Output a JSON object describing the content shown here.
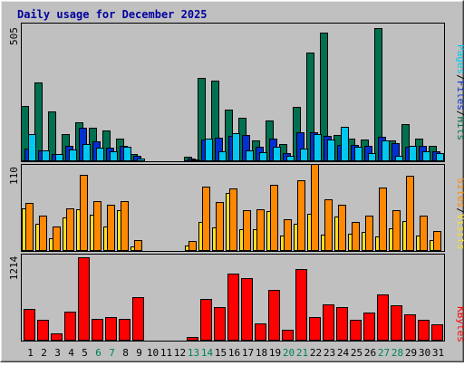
{
  "chart_data": [
    {
      "type": "bar",
      "title": "Daily usage for December 2025",
      "ymax_label": "505",
      "legend": [
        "Pages",
        "Files",
        "Hits"
      ],
      "ylim": [
        0,
        505
      ],
      "categories": [
        "1",
        "2",
        "3",
        "4",
        "5",
        "6",
        "7",
        "8",
        "9",
        "10",
        "11",
        "12",
        "13",
        "14",
        "15",
        "16",
        "17",
        "18",
        "19",
        "20",
        "21",
        "22",
        "23",
        "24",
        "25",
        "26",
        "27",
        "28",
        "29",
        "30",
        "31"
      ],
      "series": [
        {
          "name": "Hits",
          "values": [
            203,
            290,
            183,
            97,
            143,
            120,
            110,
            80,
            24,
            0,
            0,
            0,
            13,
            306,
            296,
            190,
            157,
            74,
            148,
            60,
            200,
            400,
            476,
            93,
            80,
            76,
            490,
            73,
            136,
            80,
            53
          ]
        },
        {
          "name": "Files",
          "values": [
            44,
            37,
            23,
            54,
            121,
            70,
            47,
            53,
            17,
            0,
            0,
            0,
            7,
            76,
            84,
            91,
            93,
            50,
            80,
            27,
            103,
            103,
            90,
            57,
            57,
            53,
            86,
            63,
            50,
            54,
            33
          ]
        },
        {
          "name": "Pages",
          "values": [
            97,
            37,
            23,
            40,
            60,
            47,
            33,
            50,
            7,
            0,
            0,
            0,
            3,
            80,
            33,
            100,
            37,
            30,
            50,
            16,
            43,
            97,
            76,
            126,
            50,
            27,
            73,
            17,
            53,
            33,
            27
          ]
        }
      ],
      "colors": {
        "Hits": "#007050",
        "Files": "#0030d0",
        "Pages": "#00c8f0"
      }
    },
    {
      "type": "bar",
      "ymax_label": "110",
      "legend": [
        "Sites",
        "Visits"
      ],
      "ylim": [
        0,
        110
      ],
      "categories": [
        "1",
        "2",
        "3",
        "4",
        "5",
        "6",
        "7",
        "8",
        "9",
        "10",
        "11",
        "12",
        "13",
        "14",
        "15",
        "16",
        "17",
        "18",
        "19",
        "20",
        "21",
        "22",
        "23",
        "24",
        "25",
        "26",
        "27",
        "28",
        "29",
        "30",
        "31"
      ],
      "series": [
        {
          "name": "Visits",
          "values": [
            54,
            34,
            15,
            42,
            53,
            46,
            30,
            51,
            5,
            0,
            0,
            0,
            6,
            36,
            29,
            74,
            27,
            27,
            50,
            19,
            34,
            47,
            20,
            43,
            21,
            23,
            17,
            28,
            37,
            19,
            13
          ]
        },
        {
          "name": "Sites",
          "values": [
            61,
            45,
            30,
            54,
            97,
            63,
            59,
            63,
            13,
            0,
            0,
            0,
            12,
            82,
            62,
            79,
            51,
            53,
            84,
            40,
            90,
            111,
            66,
            58,
            36,
            44,
            81,
            51,
            96,
            45,
            24
          ]
        }
      ],
      "colors": {
        "Visits": "#ffde20",
        "Sites": "#ff8800"
      }
    },
    {
      "type": "bar",
      "ymax_label": "1214",
      "legend": [
        "KBytes"
      ],
      "ylim": [
        0,
        1214
      ],
      "categories": [
        "1",
        "2",
        "3",
        "4",
        "5",
        "6",
        "7",
        "8",
        "9",
        "10",
        "11",
        "12",
        "13",
        "14",
        "15",
        "16",
        "17",
        "18",
        "19",
        "20",
        "21",
        "22",
        "23",
        "24",
        "25",
        "26",
        "27",
        "28",
        "29",
        "30",
        "31"
      ],
      "series": [
        {
          "name": "KBytes",
          "values": [
            450,
            285,
            90,
            405,
            1200,
            300,
            330,
            300,
            615,
            0,
            0,
            0,
            45,
            600,
            480,
            960,
            900,
            240,
            720,
            150,
            1035,
            330,
            510,
            480,
            285,
            390,
            660,
            495,
            375,
            285,
            225
          ]
        }
      ],
      "colors": {
        "KBytes": "#ff0000"
      }
    }
  ],
  "weekend_days": [
    "6",
    "7",
    "13",
    "14",
    "20",
    "21",
    "27",
    "28"
  ],
  "colors": {
    "background": "#c0c0c0",
    "title": "#0000a0",
    "weekday_label": "#000000",
    "weekend_label": "#00805c",
    "hits": "#007050",
    "files": "#0030d0",
    "pages": "#00c8f0",
    "visits": "#ffde20",
    "sites": "#ff8800",
    "kbytes": "#ff0000"
  }
}
